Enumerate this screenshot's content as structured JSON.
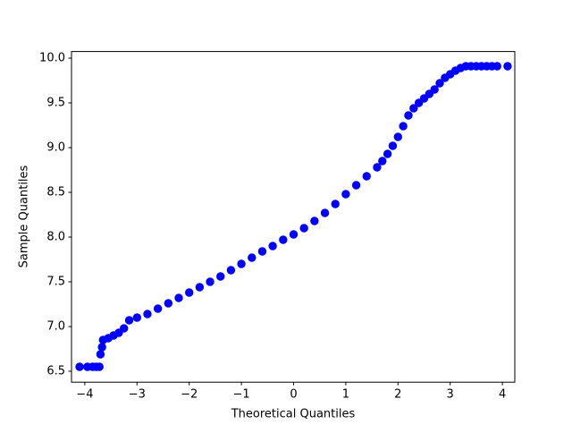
{
  "chart_data": {
    "type": "scatter",
    "xlabel": "Theoretical Quantiles",
    "ylabel": "Sample Quantiles",
    "color": "#0000ff",
    "x": [
      -4.1,
      -3.95,
      -3.85,
      -3.78,
      -3.72,
      -3.7,
      -3.67,
      -3.65,
      -3.55,
      -3.45,
      -3.35,
      -3.25,
      -3.15,
      -3.0,
      -2.8,
      -2.6,
      -2.4,
      -2.2,
      -2.0,
      -1.8,
      -1.6,
      -1.4,
      -1.2,
      -1.0,
      -0.8,
      -0.6,
      -0.4,
      -0.2,
      0,
      0.2,
      0.4,
      0.6,
      0.8,
      1.0,
      1.2,
      1.4,
      1.6,
      1.7,
      1.8,
      1.9,
      2.0,
      2.1,
      2.2,
      2.3,
      2.4,
      2.5,
      2.6,
      2.7,
      2.8,
      2.9,
      3.0,
      3.1,
      3.2,
      3.3,
      3.4,
      3.5,
      3.6,
      3.7,
      3.8,
      3.9,
      4.1
    ],
    "y": [
      6.55,
      6.55,
      6.55,
      6.55,
      6.55,
      6.69,
      6.77,
      6.85,
      6.87,
      6.9,
      6.93,
      6.98,
      7.07,
      7.1,
      7.14,
      7.2,
      7.26,
      7.32,
      7.38,
      7.44,
      7.5,
      7.56,
      7.63,
      7.7,
      7.77,
      7.84,
      7.9,
      7.97,
      8.03,
      8.1,
      8.18,
      8.27,
      8.37,
      8.48,
      8.58,
      8.68,
      8.78,
      8.85,
      8.93,
      9.02,
      9.12,
      9.24,
      9.36,
      9.44,
      9.5,
      9.55,
      9.6,
      9.65,
      9.72,
      9.78,
      9.82,
      9.86,
      9.89,
      9.91,
      9.91,
      9.91,
      9.91,
      9.91,
      9.91,
      9.91,
      9.91
    ],
    "xlim": [
      -4.255,
      4.238
    ],
    "ylim": [
      6.378,
      10.074
    ],
    "xticks": [
      {
        "value": -4,
        "label": "−4"
      },
      {
        "value": -3,
        "label": "−3"
      },
      {
        "value": -2,
        "label": "−2"
      },
      {
        "value": -1,
        "label": "−1"
      },
      0,
      1,
      2,
      3,
      4
    ],
    "yticks": [
      6.5,
      {
        "value": 7,
        "label": "7.0"
      },
      7.5,
      {
        "value": 8,
        "label": "8.0"
      },
      8.5,
      {
        "value": 9,
        "label": "9.0"
      },
      9.5,
      {
        "value": 10,
        "label": "10.0"
      }
    ]
  }
}
